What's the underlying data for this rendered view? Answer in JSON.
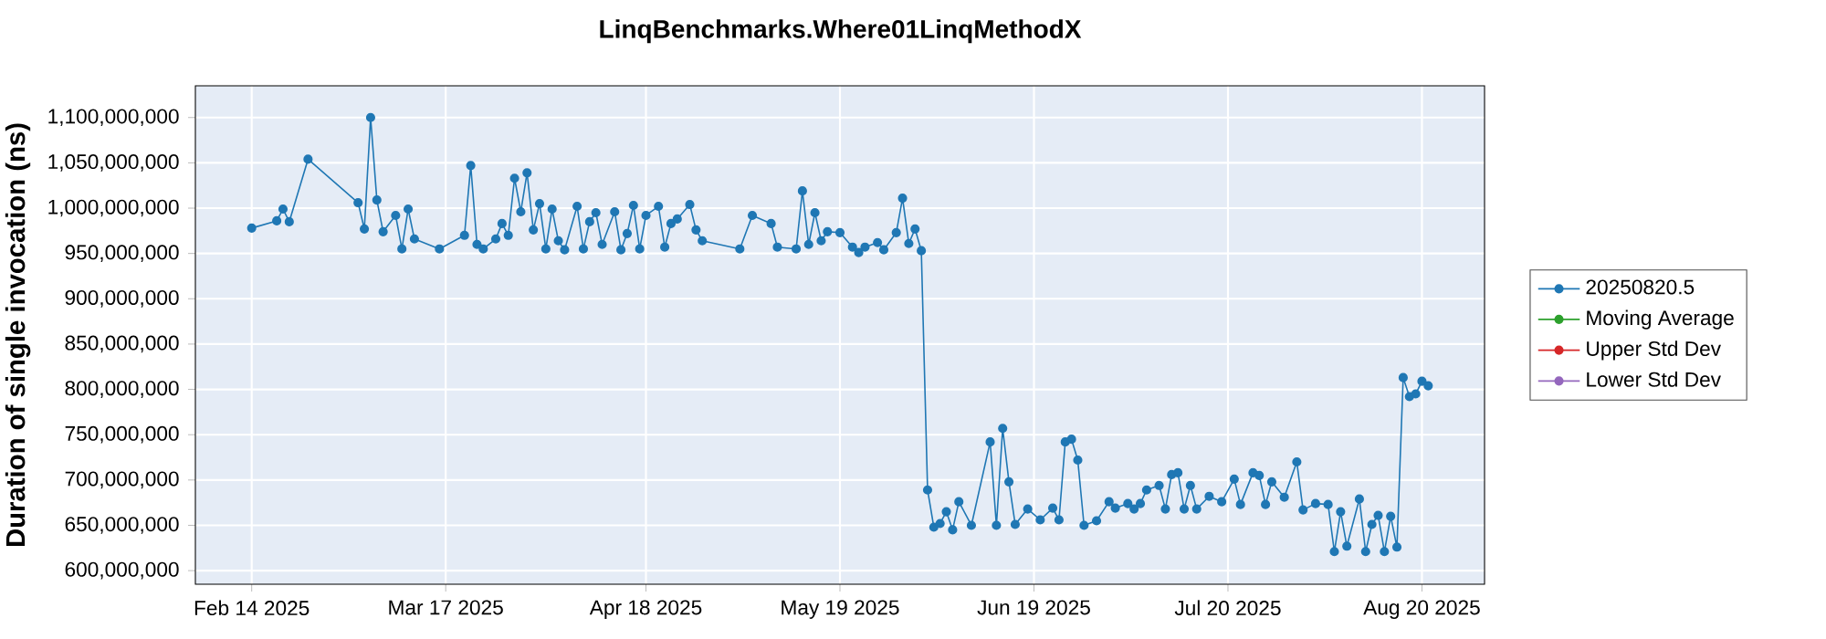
{
  "chart_data": {
    "type": "line",
    "title": "LinqBenchmarks.Where01LinqMethodX",
    "ylabel": "Duration of single invocation (ns)",
    "xlim": [
      "2025-02-05",
      "2025-08-30"
    ],
    "xticks": [
      {
        "value": "2025-02-14",
        "label": "Feb 14 2025"
      },
      {
        "value": "2025-03-17",
        "label": "Mar 17 2025"
      },
      {
        "value": "2025-04-18",
        "label": "Apr 18 2025"
      },
      {
        "value": "2025-05-19",
        "label": "May 19 2025"
      },
      {
        "value": "2025-06-19",
        "label": "Jun 19 2025"
      },
      {
        "value": "2025-07-20",
        "label": "Jul 20 2025"
      },
      {
        "value": "2025-08-20",
        "label": "Aug 20 2025"
      }
    ],
    "ylim": [
      585000000,
      1135000000
    ],
    "yticks": [
      {
        "value": 600000000,
        "label": "600,000,000"
      },
      {
        "value": 650000000,
        "label": "650,000,000"
      },
      {
        "value": 700000000,
        "label": "700,000,000"
      },
      {
        "value": 750000000,
        "label": "750,000,000"
      },
      {
        "value": 800000000,
        "label": "800,000,000"
      },
      {
        "value": 850000000,
        "label": "850,000,000"
      },
      {
        "value": 900000000,
        "label": "900,000,000"
      },
      {
        "value": 950000000,
        "label": "950,000,000"
      },
      {
        "value": 1000000000,
        "label": "1,000,000,000"
      },
      {
        "value": 1050000000,
        "label": "1,050,000,000"
      },
      {
        "value": 1100000000,
        "label": "1,100,000,000"
      }
    ],
    "grid": true,
    "legend": "right",
    "marker": "circle",
    "line_style": "solid",
    "series": [
      {
        "name": "20250820.5",
        "color": "#1f77b4",
        "x": [
          "2025-02-14",
          "2025-02-18",
          "2025-02-19",
          "2025-02-20",
          "2025-02-23",
          "2025-03-03",
          "2025-03-04",
          "2025-03-05",
          "2025-03-06",
          "2025-03-07",
          "2025-03-09",
          "2025-03-10",
          "2025-03-11",
          "2025-03-12",
          "2025-03-16",
          "2025-03-20",
          "2025-03-21",
          "2025-03-22",
          "2025-03-23",
          "2025-03-25",
          "2025-03-26",
          "2025-03-27",
          "2025-03-28",
          "2025-03-29",
          "2025-03-30",
          "2025-03-31",
          "2025-04-01",
          "2025-04-02",
          "2025-04-03",
          "2025-04-04",
          "2025-04-05",
          "2025-04-07",
          "2025-04-08",
          "2025-04-09",
          "2025-04-10",
          "2025-04-11",
          "2025-04-13",
          "2025-04-14",
          "2025-04-15",
          "2025-04-16",
          "2025-04-17",
          "2025-04-18",
          "2025-04-20",
          "2025-04-21",
          "2025-04-22",
          "2025-04-23",
          "2025-04-25",
          "2025-04-26",
          "2025-04-27",
          "2025-05-03",
          "2025-05-05",
          "2025-05-08",
          "2025-05-09",
          "2025-05-12",
          "2025-05-13",
          "2025-05-14",
          "2025-05-15",
          "2025-05-16",
          "2025-05-17",
          "2025-05-19",
          "2025-05-21",
          "2025-05-22",
          "2025-05-23",
          "2025-05-25",
          "2025-05-26",
          "2025-05-28",
          "2025-05-29",
          "2025-05-30",
          "2025-05-31",
          "2025-06-01",
          "2025-06-02",
          "2025-06-03",
          "2025-06-04",
          "2025-06-05",
          "2025-06-06",
          "2025-06-07",
          "2025-06-09",
          "2025-06-12",
          "2025-06-13",
          "2025-06-14",
          "2025-06-15",
          "2025-06-16",
          "2025-06-18",
          "2025-06-20",
          "2025-06-22",
          "2025-06-23",
          "2025-06-24",
          "2025-06-25",
          "2025-06-26",
          "2025-06-27",
          "2025-06-29",
          "2025-07-01",
          "2025-07-02",
          "2025-07-04",
          "2025-07-05",
          "2025-07-06",
          "2025-07-07",
          "2025-07-09",
          "2025-07-10",
          "2025-07-11",
          "2025-07-12",
          "2025-07-13",
          "2025-07-14",
          "2025-07-15",
          "2025-07-17",
          "2025-07-19",
          "2025-07-21",
          "2025-07-22",
          "2025-07-24",
          "2025-07-25",
          "2025-07-26",
          "2025-07-27",
          "2025-07-29",
          "2025-07-31",
          "2025-08-01",
          "2025-08-03",
          "2025-08-05",
          "2025-08-06",
          "2025-08-07",
          "2025-08-08",
          "2025-08-10",
          "2025-08-11",
          "2025-08-12",
          "2025-08-13",
          "2025-08-14",
          "2025-08-15",
          "2025-08-16",
          "2025-08-17",
          "2025-08-18",
          "2025-08-19",
          "2025-08-20",
          "2025-08-21"
        ],
        "values": [
          978000000,
          986000000,
          999000000,
          985000000,
          1054000000,
          1006000000,
          977000000,
          1100000000,
          1009000000,
          974000000,
          992000000,
          955000000,
          999000000,
          966000000,
          955000000,
          970000000,
          1047000000,
          960000000,
          955000000,
          966000000,
          983000000,
          970000000,
          1033000000,
          996000000,
          1039000000,
          976000000,
          1005000000,
          955000000,
          999000000,
          964000000,
          954000000,
          1002000000,
          955000000,
          985000000,
          995000000,
          960000000,
          996000000,
          954000000,
          972000000,
          1003000000,
          955000000,
          992000000,
          1002000000,
          957000000,
          983000000,
          988000000,
          1004000000,
          976000000,
          964000000,
          955000000,
          992000000,
          983000000,
          957000000,
          955000000,
          1019000000,
          960000000,
          995000000,
          964000000,
          974000000,
          973000000,
          957000000,
          951000000,
          957000000,
          962000000,
          954000000,
          973000000,
          1011000000,
          961000000,
          977000000,
          953000000,
          689000000,
          648000000,
          652000000,
          665000000,
          645000000,
          676000000,
          650000000,
          742000000,
          650000000,
          757000000,
          698000000,
          651000000,
          668000000,
          656000000,
          669000000,
          656000000,
          742000000,
          745000000,
          722000000,
          650000000,
          655000000,
          676000000,
          669000000,
          674000000,
          668000000,
          674000000,
          689000000,
          694000000,
          668000000,
          706000000,
          708000000,
          668000000,
          694000000,
          668000000,
          682000000,
          676000000,
          701000000,
          673000000,
          708000000,
          705000000,
          673000000,
          698000000,
          681000000,
          720000000,
          667000000,
          674000000,
          673000000,
          621000000,
          665000000,
          627000000,
          679000000,
          621000000,
          651000000,
          661000000,
          621000000,
          660000000,
          626000000,
          813000000,
          792000000,
          795000000,
          809000000,
          804000000
        ]
      },
      {
        "name": "Moving Average",
        "color": "#2ca02c"
      },
      {
        "name": "Upper Std Dev",
        "color": "#d62728"
      },
      {
        "name": "Lower Std Dev",
        "color": "#9467bd"
      }
    ]
  }
}
